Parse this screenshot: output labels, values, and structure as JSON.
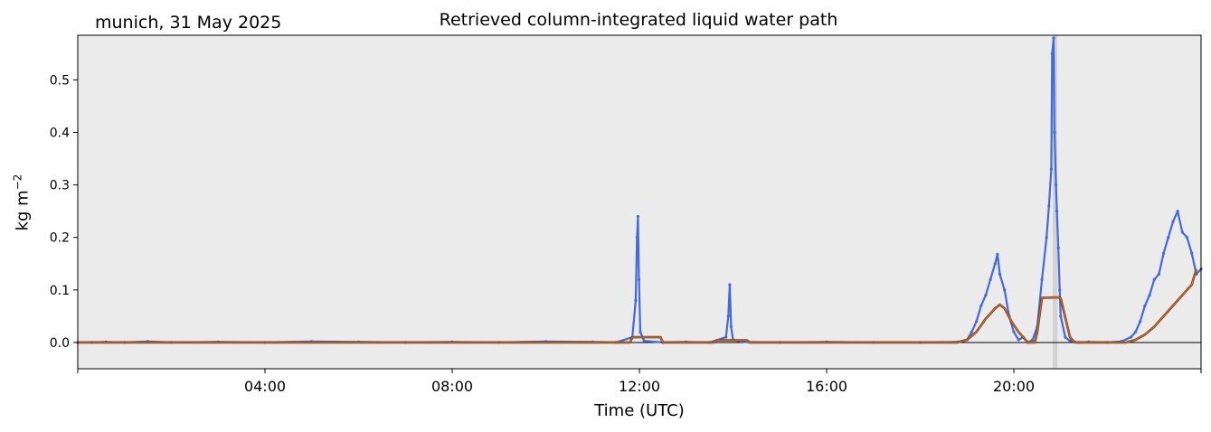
{
  "site_label": "munich, 31 May 2025",
  "chart_data": {
    "type": "scatter",
    "title": "Retrieved column-integrated liquid water path",
    "xlabel": "Time (UTC)",
    "ylabel": {
      "base": "kg m",
      "exponent": "−2"
    },
    "xlim_hours": [
      0,
      24
    ],
    "ylim": [
      -0.05,
      0.585
    ],
    "x_ticks": [
      {
        "hour": 4,
        "label": "04:00"
      },
      {
        "hour": 8,
        "label": "08:00"
      },
      {
        "hour": 12,
        "label": "12:00"
      },
      {
        "hour": 16,
        "label": "16:00"
      },
      {
        "hour": 20,
        "label": "20:00"
      }
    ],
    "y_ticks": [
      {
        "value": 0.0,
        "label": "0.0"
      },
      {
        "value": 0.1,
        "label": "0.1"
      },
      {
        "value": 0.2,
        "label": "0.2"
      },
      {
        "value": 0.3,
        "label": "0.3"
      },
      {
        "value": 0.4,
        "label": "0.4"
      },
      {
        "value": 0.5,
        "label": "0.5"
      }
    ],
    "zero_line": true,
    "flagged_interval_hours": [
      20.83,
      20.93
    ],
    "series": [
      {
        "color": "#4169e1",
        "style": "points",
        "x": [
          0.0,
          0.3,
          0.6,
          1.0,
          1.5,
          2.0,
          3.0,
          4.0,
          5.0,
          6.0,
          7.0,
          8.0,
          9.0,
          10.0,
          11.0,
          11.5,
          11.85,
          11.92,
          11.95,
          11.97,
          11.99,
          12.02,
          12.1,
          12.5,
          13.0,
          13.5,
          13.85,
          13.9,
          13.93,
          13.96,
          14.0,
          14.2,
          15.0,
          16.0,
          17.0,
          18.0,
          18.8,
          19.0,
          19.1,
          19.2,
          19.3,
          19.4,
          19.5,
          19.6,
          19.65,
          19.7,
          19.8,
          19.9,
          20.0,
          20.1,
          20.2,
          20.3,
          20.4,
          20.5,
          20.6,
          20.7,
          20.75,
          20.8,
          20.82,
          20.85,
          20.87,
          20.9,
          20.92,
          20.95,
          20.98,
          21.0,
          21.1,
          21.2,
          21.4,
          21.6,
          22.0,
          22.3,
          22.5,
          22.6,
          22.7,
          22.8,
          22.9,
          23.0,
          23.1,
          23.2,
          23.3,
          23.4,
          23.5,
          23.6,
          23.7,
          23.8,
          23.9,
          24.0
        ],
        "y": [
          0.0,
          0.0,
          0.001,
          0.0,
          0.002,
          0.0,
          0.001,
          0.0,
          0.002,
          0.001,
          0.0,
          0.001,
          0.0,
          0.002,
          0.001,
          0.0,
          0.01,
          0.08,
          0.2,
          0.24,
          0.12,
          0.02,
          0.003,
          0.0,
          0.001,
          0.0,
          0.01,
          0.05,
          0.11,
          0.03,
          0.005,
          0.001,
          0.0,
          0.001,
          0.0,
          0.0,
          0.001,
          0.005,
          0.02,
          0.04,
          0.07,
          0.09,
          0.12,
          0.15,
          0.168,
          0.13,
          0.1,
          0.05,
          0.02,
          0.005,
          0.01,
          0.0,
          0.005,
          0.03,
          0.12,
          0.2,
          0.26,
          0.33,
          0.55,
          0.58,
          0.4,
          0.3,
          0.25,
          0.18,
          0.1,
          0.05,
          0.01,
          0.003,
          0.0,
          0.001,
          0.0,
          0.002,
          0.01,
          0.02,
          0.04,
          0.07,
          0.09,
          0.12,
          0.13,
          0.17,
          0.2,
          0.23,
          0.25,
          0.21,
          0.2,
          0.17,
          0.13,
          0.14
        ]
      },
      {
        "color": "#d2691e",
        "style": "line",
        "x": [
          0.0,
          11.8,
          11.85,
          12.45,
          12.5,
          13.6,
          13.65,
          14.3,
          14.35,
          18.8,
          19.0,
          19.2,
          19.4,
          19.6,
          19.7,
          19.8,
          19.95,
          20.1,
          20.2,
          20.3,
          20.45,
          20.5,
          20.6,
          20.95,
          21.0,
          21.2,
          21.3,
          22.0,
          22.4,
          22.6,
          22.8,
          23.0,
          23.2,
          23.4,
          23.6,
          23.8,
          23.9
        ],
        "y": [
          0.0,
          0.0,
          0.01,
          0.01,
          0.0,
          0.0,
          0.004,
          0.004,
          0.0,
          0.0,
          0.005,
          0.02,
          0.045,
          0.065,
          0.072,
          0.065,
          0.04,
          0.02,
          0.01,
          0.0,
          0.0,
          0.02,
          0.085,
          0.086,
          0.084,
          0.01,
          0.0,
          0.0,
          0.0,
          0.005,
          0.015,
          0.03,
          0.05,
          0.07,
          0.09,
          0.11,
          0.14
        ]
      }
    ]
  }
}
